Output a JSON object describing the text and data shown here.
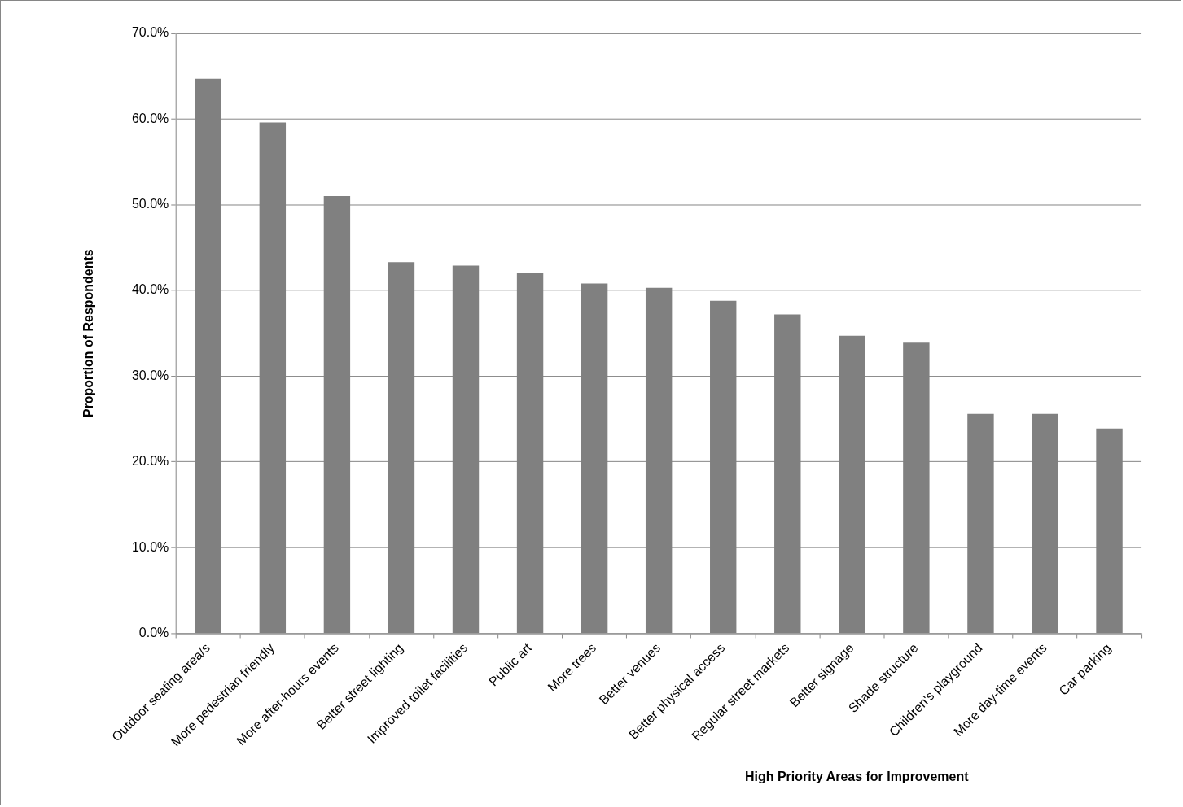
{
  "chart_data": {
    "type": "bar",
    "xlabel": "High Priority Areas for Improvement",
    "ylabel": "Proportion of Respondents",
    "categories": [
      "Outdoor seating area/s",
      "More pedestrian friendly",
      "More after-hours events",
      "Better street lighting",
      "Improved toilet facilities",
      "Public art",
      "More trees",
      "Better venues",
      "Better physical access",
      "Regular street markets",
      "Better signage",
      "Shade structure",
      "Children's playground",
      "More day-time events",
      "Car parking"
    ],
    "values": [
      64.7,
      59.6,
      51.0,
      43.3,
      42.9,
      42.0,
      40.8,
      40.3,
      38.8,
      37.2,
      34.7,
      33.9,
      25.6,
      25.6,
      23.9
    ],
    "color": "#808080",
    "ylim": [
      0,
      70
    ],
    "yticks": [
      {
        "value": 0,
        "label": "0.0%"
      },
      {
        "value": 10,
        "label": "10.0%"
      },
      {
        "value": 20,
        "label": "20.0%"
      },
      {
        "value": 30,
        "label": "30.0%"
      },
      {
        "value": 40,
        "label": "40.0%"
      },
      {
        "value": 50,
        "label": "50.0%"
      },
      {
        "value": 60,
        "label": "60.0%"
      },
      {
        "value": 70,
        "label": "70.0%"
      }
    ],
    "grid": "y",
    "legend": false
  }
}
